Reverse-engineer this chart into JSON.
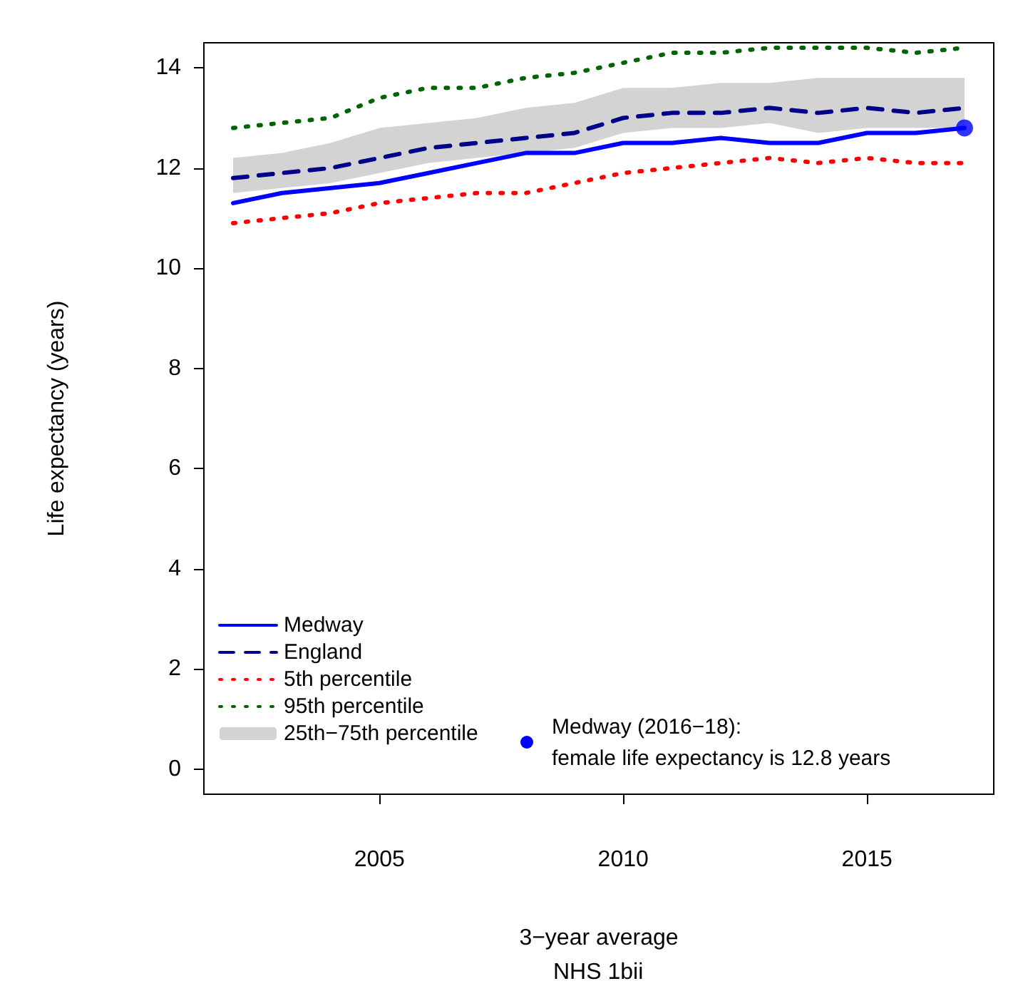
{
  "chart_data": {
    "type": "line",
    "xlabel": "3−year average",
    "ylabel": "Life expectancy (years)",
    "x": [
      2002,
      2003,
      2004,
      2005,
      2006,
      2007,
      2008,
      2009,
      2010,
      2011,
      2012,
      2013,
      2014,
      2015,
      2016,
      2017
    ],
    "series": [
      {
        "name": "Medway",
        "color": "#0000ff",
        "line_style": "solid",
        "values": [
          11.3,
          11.5,
          11.6,
          11.7,
          11.9,
          12.1,
          12.3,
          12.3,
          12.5,
          12.5,
          12.6,
          12.5,
          12.5,
          12.7,
          12.7,
          12.8
        ]
      },
      {
        "name": "England",
        "color": "#00008b",
        "line_style": "dashed",
        "values": [
          11.8,
          11.9,
          12.0,
          12.2,
          12.4,
          12.5,
          12.6,
          12.7,
          13.0,
          13.1,
          13.1,
          13.2,
          13.1,
          13.2,
          13.1,
          13.2
        ]
      },
      {
        "name": "5th percentile",
        "color": "#ff0000",
        "line_style": "dotted",
        "values": [
          10.9,
          11.0,
          11.1,
          11.3,
          11.4,
          11.5,
          11.5,
          11.7,
          11.9,
          12.0,
          12.1,
          12.2,
          12.1,
          12.2,
          12.1,
          12.1
        ]
      },
      {
        "name": "95th percentile",
        "color": "#006400",
        "line_style": "dotted",
        "values": [
          12.8,
          12.9,
          13.0,
          13.4,
          13.6,
          13.6,
          13.8,
          13.9,
          14.1,
          14.3,
          14.3,
          14.4,
          14.4,
          14.4,
          14.3,
          14.4
        ]
      },
      {
        "name": "25th−75th percentile",
        "type": "area",
        "color": "#d3d3d3",
        "values": [
          null,
          null,
          null,
          null,
          null,
          null,
          null,
          null,
          null,
          null,
          null,
          null,
          null,
          null,
          null,
          null
        ],
        "lower": [
          11.5,
          11.6,
          11.7,
          11.9,
          12.1,
          12.2,
          12.3,
          12.4,
          12.7,
          12.8,
          12.8,
          12.9,
          12.7,
          12.8,
          12.8,
          12.8
        ],
        "upper": [
          12.2,
          12.3,
          12.5,
          12.8,
          12.9,
          13.0,
          13.2,
          13.3,
          13.6,
          13.6,
          13.7,
          13.7,
          13.8,
          13.8,
          13.8,
          13.8
        ]
      },
      {
        "type": "scatter",
        "color": "#0000ff",
        "marker": "circle",
        "x": [
          2017
        ],
        "values": [
          12.8
        ]
      }
    ],
    "annotations": [
      "Medway (2016−18):\nfemale life expectancy is 12.8 years",
      "NHS 1bii"
    ],
    "xlim": [
      2001.4,
      2017.6
    ],
    "ylim": [
      -0.5,
      14.5
    ],
    "xticks": [
      2005,
      2010,
      2015
    ],
    "yticks": [
      0,
      2,
      4,
      6,
      8,
      10,
      12,
      14
    ],
    "grid": false,
    "legend": "bottom left",
    "marker": "none"
  }
}
